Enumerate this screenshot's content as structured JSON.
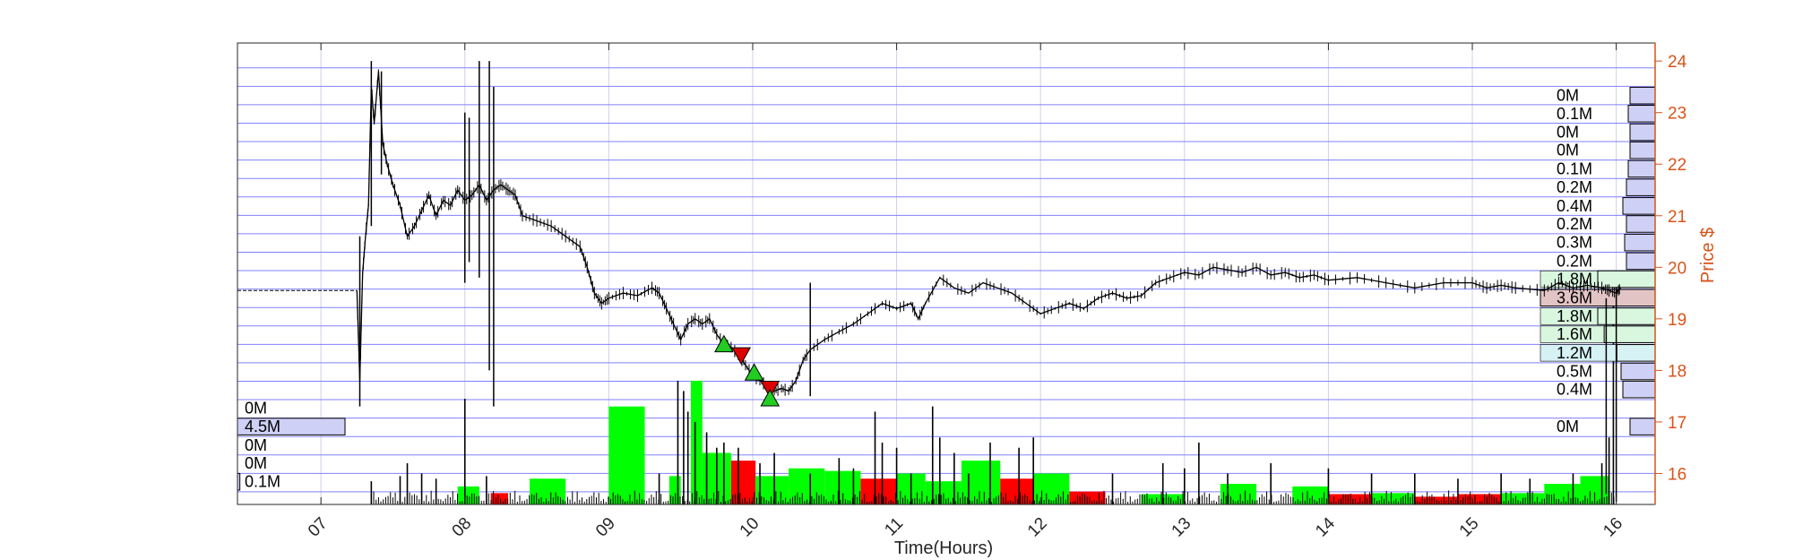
{
  "chart_data": {
    "type": "line",
    "title": "",
    "xlabel": "Time(Hours)",
    "ylabel": "Price $",
    "x_ticks": [
      "07",
      "08",
      "09",
      "10",
      "11",
      "12",
      "13",
      "14",
      "15",
      "16"
    ],
    "y_ticks": [
      16,
      17,
      18,
      19,
      20,
      21,
      22,
      23,
      24
    ],
    "xlim": [
      6.42,
      16.27
    ],
    "ylim": [
      15.4,
      24.35
    ],
    "grid": "horizontal price levels",
    "colors": {
      "price": "#000000",
      "axis_right": "#D95319",
      "grid": "#8080ff",
      "vgrid": "#d0d0e8",
      "buy_volume": "#00ff00",
      "sell_volume": "#ff0000",
      "volume_profile": "#cfd0f5",
      "buy_marker": "#22cc22",
      "sell_marker": "#dd0000"
    },
    "price_series": {
      "name": "Price",
      "points": [
        [
          6.42,
          19.55
        ],
        [
          7.25,
          19.55
        ],
        [
          7.27,
          17.8
        ],
        [
          7.29,
          19.9
        ],
        [
          7.31,
          20.6
        ],
        [
          7.33,
          21.2
        ],
        [
          7.35,
          23.5
        ],
        [
          7.37,
          22.8
        ],
        [
          7.4,
          23.8
        ],
        [
          7.43,
          22.4
        ],
        [
          7.46,
          22.0
        ],
        [
          7.5,
          21.6
        ],
        [
          7.55,
          21.2
        ],
        [
          7.6,
          20.6
        ],
        [
          7.65,
          20.8
        ],
        [
          7.7,
          21.1
        ],
        [
          7.75,
          21.4
        ],
        [
          7.8,
          21.0
        ],
        [
          7.85,
          21.3
        ],
        [
          7.9,
          21.2
        ],
        [
          7.95,
          21.5
        ],
        [
          8.0,
          21.3
        ],
        [
          8.05,
          21.4
        ],
        [
          8.1,
          21.6
        ],
        [
          8.15,
          21.3
        ],
        [
          8.2,
          21.5
        ],
        [
          8.25,
          21.6
        ],
        [
          8.3,
          21.5
        ],
        [
          8.35,
          21.4
        ],
        [
          8.4,
          21.0
        ],
        [
          8.5,
          20.9
        ],
        [
          8.6,
          20.8
        ],
        [
          8.7,
          20.6
        ],
        [
          8.8,
          20.4
        ],
        [
          8.85,
          20.0
        ],
        [
          8.9,
          19.5
        ],
        [
          8.95,
          19.3
        ],
        [
          9.0,
          19.4
        ],
        [
          9.1,
          19.5
        ],
        [
          9.2,
          19.45
        ],
        [
          9.3,
          19.6
        ],
        [
          9.35,
          19.5
        ],
        [
          9.4,
          19.2
        ],
        [
          9.45,
          18.9
        ],
        [
          9.5,
          18.6
        ],
        [
          9.55,
          18.9
        ],
        [
          9.6,
          19.0
        ],
        [
          9.65,
          18.9
        ],
        [
          9.7,
          19.0
        ],
        [
          9.75,
          18.7
        ],
        [
          9.8,
          18.5
        ],
        [
          9.85,
          18.45
        ],
        [
          9.9,
          18.3
        ],
        [
          9.95,
          18.1
        ],
        [
          10.0,
          17.9
        ],
        [
          10.05,
          17.8
        ],
        [
          10.1,
          17.7
        ],
        [
          10.15,
          17.6
        ],
        [
          10.2,
          17.65
        ],
        [
          10.25,
          17.6
        ],
        [
          10.3,
          17.8
        ],
        [
          10.35,
          18.2
        ],
        [
          10.4,
          18.4
        ],
        [
          10.5,
          18.6
        ],
        [
          10.6,
          18.75
        ],
        [
          10.7,
          18.9
        ],
        [
          10.8,
          19.1
        ],
        [
          10.9,
          19.3
        ],
        [
          11.0,
          19.2
        ],
        [
          11.1,
          19.3
        ],
        [
          11.15,
          19.0
        ],
        [
          11.2,
          19.3
        ],
        [
          11.3,
          19.8
        ],
        [
          11.4,
          19.6
        ],
        [
          11.5,
          19.5
        ],
        [
          11.6,
          19.7
        ],
        [
          11.7,
          19.6
        ],
        [
          11.8,
          19.5
        ],
        [
          11.9,
          19.3
        ],
        [
          12.0,
          19.1
        ],
        [
          12.1,
          19.2
        ],
        [
          12.2,
          19.3
        ],
        [
          12.3,
          19.2
        ],
        [
          12.4,
          19.4
        ],
        [
          12.5,
          19.5
        ],
        [
          12.6,
          19.4
        ],
        [
          12.7,
          19.45
        ],
        [
          12.8,
          19.7
        ],
        [
          12.9,
          19.8
        ],
        [
          13.0,
          19.9
        ],
        [
          13.1,
          19.85
        ],
        [
          13.2,
          20.0
        ],
        [
          13.3,
          19.95
        ],
        [
          13.4,
          19.9
        ],
        [
          13.5,
          20.0
        ],
        [
          13.6,
          19.85
        ],
        [
          13.7,
          19.9
        ],
        [
          13.8,
          19.8
        ],
        [
          13.9,
          19.85
        ],
        [
          14.0,
          19.75
        ],
        [
          14.2,
          19.8
        ],
        [
          14.4,
          19.7
        ],
        [
          14.6,
          19.6
        ],
        [
          14.8,
          19.7
        ],
        [
          15.0,
          19.7
        ],
        [
          15.1,
          19.6
        ],
        [
          15.2,
          19.65
        ],
        [
          15.3,
          19.6
        ],
        [
          15.5,
          19.55
        ],
        [
          15.6,
          19.7
        ],
        [
          15.7,
          19.6
        ],
        [
          15.8,
          19.65
        ],
        [
          15.9,
          19.6
        ],
        [
          15.95,
          19.55
        ],
        [
          16.0,
          19.5
        ],
        [
          16.03,
          19.6
        ]
      ],
      "spikes": [
        [
          7.27,
          17.3,
          20.6
        ],
        [
          7.35,
          20.8,
          24.0
        ],
        [
          7.42,
          21.8,
          23.8
        ],
        [
          8.0,
          19.7,
          23.0
        ],
        [
          8.03,
          20.1,
          22.9
        ],
        [
          8.1,
          19.8,
          24.0
        ],
        [
          8.17,
          18.0,
          24.0
        ],
        [
          8.2,
          17.3,
          23.5
        ],
        [
          10.4,
          17.5,
          19.7
        ],
        [
          15.93,
          15.6,
          19.4
        ],
        [
          16.0,
          15.45,
          19.6
        ]
      ]
    },
    "markers": [
      {
        "type": "buy",
        "x": 9.8,
        "y": 18.5
      },
      {
        "type": "sell",
        "x": 9.92,
        "y": 18.3
      },
      {
        "type": "buy",
        "x": 10.01,
        "y": 17.95
      },
      {
        "type": "sell",
        "x": 10.12,
        "y": 17.65
      },
      {
        "type": "buy",
        "x": 10.12,
        "y": 17.45
      }
    ],
    "volume_blocks": [
      {
        "x0": 7.95,
        "x1": 8.1,
        "level": 15.75,
        "side": "buy"
      },
      {
        "x0": 8.18,
        "x1": 8.3,
        "level": 15.62,
        "side": "sell"
      },
      {
        "x0": 8.45,
        "x1": 8.7,
        "level": 15.9,
        "side": "buy"
      },
      {
        "x0": 9.0,
        "x1": 9.25,
        "level": 17.3,
        "side": "buy"
      },
      {
        "x0": 9.42,
        "x1": 9.5,
        "level": 15.95,
        "side": "buy"
      },
      {
        "x0": 9.57,
        "x1": 9.65,
        "level": 17.8,
        "side": "buy"
      },
      {
        "x0": 9.65,
        "x1": 9.85,
        "level": 16.4,
        "side": "buy"
      },
      {
        "x0": 9.85,
        "x1": 10.02,
        "level": 16.25,
        "side": "sell"
      },
      {
        "x0": 10.02,
        "x1": 10.25,
        "level": 15.95,
        "side": "buy"
      },
      {
        "x0": 10.25,
        "x1": 10.5,
        "level": 16.1,
        "side": "buy"
      },
      {
        "x0": 10.5,
        "x1": 10.75,
        "level": 16.05,
        "side": "buy"
      },
      {
        "x0": 10.75,
        "x1": 11.0,
        "level": 15.9,
        "side": "sell"
      },
      {
        "x0": 11.0,
        "x1": 11.2,
        "level": 16.0,
        "side": "buy"
      },
      {
        "x0": 11.2,
        "x1": 11.45,
        "level": 15.85,
        "side": "buy"
      },
      {
        "x0": 11.45,
        "x1": 11.72,
        "level": 16.25,
        "side": "buy"
      },
      {
        "x0": 11.72,
        "x1": 11.95,
        "level": 15.9,
        "side": "sell"
      },
      {
        "x0": 11.95,
        "x1": 12.2,
        "level": 16.0,
        "side": "buy"
      },
      {
        "x0": 12.2,
        "x1": 12.45,
        "level": 15.65,
        "side": "sell"
      },
      {
        "x0": 12.7,
        "x1": 13.0,
        "level": 15.6,
        "side": "buy"
      },
      {
        "x0": 13.25,
        "x1": 13.5,
        "level": 15.8,
        "side": "buy"
      },
      {
        "x0": 13.75,
        "x1": 14.0,
        "level": 15.75,
        "side": "buy"
      },
      {
        "x0": 14.0,
        "x1": 14.3,
        "level": 15.6,
        "side": "sell"
      },
      {
        "x0": 14.3,
        "x1": 14.6,
        "level": 15.62,
        "side": "buy"
      },
      {
        "x0": 14.6,
        "x1": 14.9,
        "level": 15.55,
        "side": "sell"
      },
      {
        "x0": 14.9,
        "x1": 15.2,
        "level": 15.6,
        "side": "sell"
      },
      {
        "x0": 15.2,
        "x1": 15.5,
        "level": 15.62,
        "side": "buy"
      },
      {
        "x0": 15.5,
        "x1": 15.75,
        "level": 15.8,
        "side": "buy"
      },
      {
        "x0": 15.75,
        "x1": 15.95,
        "level": 15.95,
        "side": "buy"
      }
    ],
    "volume_spikes": [
      [
        7.35,
        15.85
      ],
      [
        7.55,
        15.95
      ],
      [
        7.6,
        16.2
      ],
      [
        7.7,
        16.0
      ],
      [
        7.8,
        15.9
      ],
      [
        8.0,
        17.45
      ],
      [
        8.15,
        15.95
      ],
      [
        9.35,
        16.0
      ],
      [
        9.48,
        17.8
      ],
      [
        9.52,
        17.6
      ],
      [
        9.55,
        17.2
      ],
      [
        9.6,
        17.0
      ],
      [
        9.68,
        16.8
      ],
      [
        9.75,
        16.5
      ],
      [
        9.8,
        16.6
      ],
      [
        9.9,
        16.5
      ],
      [
        10.05,
        16.2
      ],
      [
        10.15,
        16.4
      ],
      [
        10.4,
        16.0
      ],
      [
        10.6,
        16.3
      ],
      [
        10.7,
        16.1
      ],
      [
        10.85,
        17.2
      ],
      [
        10.9,
        16.6
      ],
      [
        11.0,
        16.5
      ],
      [
        11.1,
        16.0
      ],
      [
        11.25,
        17.3
      ],
      [
        11.3,
        16.7
      ],
      [
        11.4,
        16.4
      ],
      [
        11.5,
        16.0
      ],
      [
        11.65,
        16.6
      ],
      [
        11.85,
        16.5
      ],
      [
        11.95,
        16.7
      ],
      [
        12.5,
        16.0
      ],
      [
        12.85,
        16.2
      ],
      [
        13.0,
        16.1
      ],
      [
        13.1,
        16.6
      ],
      [
        13.3,
        16.0
      ],
      [
        13.6,
        16.2
      ],
      [
        14.0,
        16.1
      ],
      [
        14.3,
        16.0
      ],
      [
        14.6,
        16.0
      ],
      [
        14.9,
        15.9
      ],
      [
        15.2,
        16.0
      ],
      [
        15.4,
        15.9
      ],
      [
        15.7,
        16.0
      ],
      [
        15.9,
        16.2
      ],
      [
        15.95,
        16.7
      ],
      [
        15.98,
        19.3
      ]
    ],
    "right_volume_profile": [
      {
        "level": 23.33,
        "value": 0.0,
        "label": "0M",
        "highlight": "none"
      },
      {
        "level": 22.98,
        "value": 0.1,
        "label": "0.1M",
        "highlight": "none"
      },
      {
        "level": 22.62,
        "value": 0.0,
        "label": "0M",
        "highlight": "none"
      },
      {
        "level": 22.27,
        "value": 0.0,
        "label": "0M",
        "highlight": "none"
      },
      {
        "level": 21.91,
        "value": 0.1,
        "label": "0.1M",
        "highlight": "none"
      },
      {
        "level": 21.55,
        "value": 0.2,
        "label": "0.2M",
        "highlight": "none"
      },
      {
        "level": 21.19,
        "value": 0.4,
        "label": "0.4M",
        "highlight": "none"
      },
      {
        "level": 20.84,
        "value": 0.2,
        "label": "0.2M",
        "highlight": "none"
      },
      {
        "level": 20.48,
        "value": 0.3,
        "label": "0.3M",
        "highlight": "none"
      },
      {
        "level": 20.12,
        "value": 0.2,
        "label": "0.2M",
        "highlight": "none"
      },
      {
        "level": 19.77,
        "value": 1.8,
        "label": "1.8M",
        "highlight": "green"
      },
      {
        "level": 19.41,
        "value": 3.6,
        "label": "3.6M",
        "highlight": "red"
      },
      {
        "level": 19.05,
        "value": 1.8,
        "label": "1.8M",
        "highlight": "green"
      },
      {
        "level": 18.7,
        "value": 1.6,
        "label": "1.6M",
        "highlight": "green"
      },
      {
        "level": 18.34,
        "value": 1.2,
        "label": "1.2M",
        "highlight": "cyan"
      },
      {
        "level": 17.98,
        "value": 0.5,
        "label": "0.5M",
        "highlight": "none"
      },
      {
        "level": 17.63,
        "value": 0.4,
        "label": "0.4M",
        "highlight": "none"
      },
      {
        "level": 16.91,
        "value": 0.0,
        "label": "0M",
        "highlight": "none"
      }
    ],
    "left_volume_profile": [
      {
        "level": 17.27,
        "value": 0.0,
        "label": "0M"
      },
      {
        "level": 16.91,
        "value": 4.5,
        "label": "4.5M"
      },
      {
        "level": 16.55,
        "value": 0.0,
        "label": "0M"
      },
      {
        "level": 16.2,
        "value": 0.0,
        "label": "0M"
      },
      {
        "level": 15.84,
        "value": 0.1,
        "label": "0.1M"
      }
    ]
  }
}
